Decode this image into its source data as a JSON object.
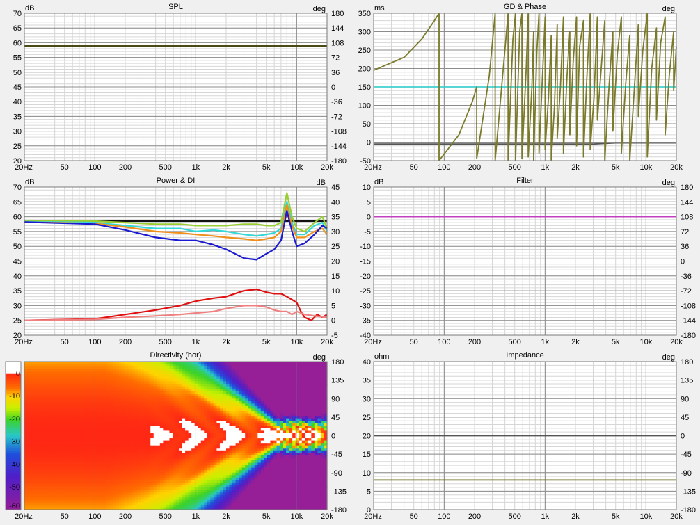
{
  "colors": {
    "background": "#f0f0f0",
    "plot_bg": "#ffffff",
    "major_grid": "#8c8c8c",
    "minor_grid": "#d6d6d6",
    "spl_trace": "#4a4a14",
    "gd_trace": "#7a7a2a",
    "phase_ref": "#40d0d0",
    "filter_trace": "#c040c0",
    "impedance_trace": "#6b6b1a",
    "power_black": "#111111",
    "power_green": "#9acd32",
    "power_cyan": "#32d8d8",
    "power_orange": "#f0901a",
    "power_blue": "#1a1ad0",
    "di_red": "#e01010",
    "di_pink": "#f08080"
  },
  "x_axis": {
    "tick_values": [
      20,
      50,
      100,
      200,
      500,
      1000,
      2000,
      5000,
      10000,
      20000
    ],
    "tick_labels": [
      "20Hz",
      "50",
      "100",
      "200",
      "500",
      "1k",
      "2k",
      "5k",
      "10k",
      "20k"
    ]
  },
  "chart_data": [
    {
      "id": "spl",
      "type": "line",
      "title": "SPL",
      "left_unit": "dB",
      "right_unit": "deg",
      "x_scale": "log",
      "xlim": [
        20,
        20000
      ],
      "ylim": [
        20,
        70
      ],
      "y_ticks": [
        "70",
        "65",
        "60",
        "55",
        "50",
        "45",
        "40",
        "35",
        "30",
        "25",
        "20"
      ],
      "y2_ticks": [
        "180",
        "144",
        "108",
        "72",
        "36",
        "0",
        "-36",
        "-72",
        "-108",
        "-144",
        "-180"
      ],
      "series": [
        {
          "color": "#4a4a14",
          "axis": "left",
          "x": [
            20,
            20000
          ],
          "y": [
            58.8,
            58.8
          ]
        }
      ]
    },
    {
      "id": "gd_phase",
      "type": "line",
      "title": "GD & Phase",
      "left_unit": "ms",
      "right_unit": "deg",
      "x_scale": "log",
      "xlim": [
        20,
        20000
      ],
      "ylim": [
        -50,
        350
      ],
      "y_ticks": [
        "350",
        "300",
        "250",
        "200",
        "150",
        "100",
        "50",
        "0",
        "-50"
      ],
      "y2_ticks": [],
      "series": [
        {
          "color": "#40d0d0",
          "axis": "left",
          "x": [
            20,
            20000
          ],
          "y": [
            150,
            150
          ]
        },
        {
          "color": "#555555",
          "axis": "left",
          "x": [
            20,
            3000,
            5000,
            20000
          ],
          "y": [
            -5,
            -5,
            -2,
            -2
          ]
        },
        {
          "color": "#7a7a2a",
          "axis": "left",
          "x": [
            20,
            40,
            60,
            80,
            89,
            89,
            140,
            190,
            210,
            210,
            280,
            320,
            320,
            400,
            430,
            430,
            480,
            510,
            510,
            560,
            590,
            590,
            650,
            680,
            680,
            740,
            770,
            770,
            830,
            870,
            870,
            950,
            1000,
            1000,
            1080,
            1150,
            1150,
            1240,
            1320,
            1320,
            1420,
            1520,
            1520,
            1650,
            1760,
            1760,
            1900,
            2050,
            2050,
            2200,
            2400,
            2400,
            2600,
            2800,
            2800,
            3050,
            3300,
            3300,
            3600,
            3900,
            3900,
            4300,
            4700,
            4700,
            5200,
            5700,
            5700,
            6300,
            6900,
            6900,
            7600,
            8400,
            8400,
            9300,
            10300,
            10300,
            11400,
            12700,
            12700,
            14000,
            15500,
            15500,
            17000,
            18800,
            18800,
            20000
          ],
          "y": [
            195,
            230,
            280,
            330,
            350,
            -50,
            20,
            110,
            150,
            -45,
            180,
            350,
            -50,
            250,
            350,
            -50,
            280,
            350,
            -50,
            300,
            350,
            -45,
            200,
            350,
            -40,
            150,
            300,
            -50,
            250,
            350,
            -30,
            200,
            340,
            -20,
            120,
            290,
            -50,
            100,
            320,
            10,
            150,
            340,
            -30,
            180,
            300,
            20,
            220,
            340,
            -10,
            260,
            330,
            -40,
            180,
            350,
            -20,
            120,
            340,
            60,
            200,
            330,
            -50,
            150,
            300,
            30,
            240,
            340,
            -30,
            160,
            290,
            -50,
            130,
            320,
            70,
            250,
            350,
            -40,
            200,
            310,
            60,
            270,
            340,
            20,
            180,
            300,
            140,
            260
          ]
        }
      ]
    },
    {
      "id": "power_di",
      "type": "line",
      "title": "Power & DI",
      "left_unit": "dB",
      "right_unit": "dB",
      "x_scale": "log",
      "xlim": [
        20,
        20000
      ],
      "ylim": [
        20,
        70
      ],
      "y_ticks": [
        "70",
        "65",
        "60",
        "55",
        "50",
        "45",
        "40",
        "35",
        "30",
        "25",
        "20"
      ],
      "y2_ticks": [
        "45",
        "40",
        "35",
        "30",
        "25",
        "20",
        "15",
        "10",
        "5",
        "0",
        "-5"
      ],
      "series": [
        {
          "color": "#111111",
          "axis": "left",
          "x": [
            20,
            20000
          ],
          "y": [
            58.5,
            58.5
          ]
        },
        {
          "color": "#9acd32",
          "axis": "left",
          "x": [
            20,
            100,
            200,
            400,
            700,
            1000,
            1500,
            2000,
            3000,
            4000,
            5000,
            6000,
            7000,
            8000,
            9000,
            10000,
            12000,
            15000,
            18000,
            20000
          ],
          "y": [
            58.5,
            58.5,
            58,
            57.5,
            57.5,
            57,
            57,
            57,
            57.5,
            57.5,
            57,
            57,
            58,
            68,
            60,
            56,
            55,
            58,
            60,
            56
          ]
        },
        {
          "color": "#32d8d8",
          "axis": "left",
          "x": [
            20,
            100,
            200,
            400,
            700,
            1000,
            1500,
            2000,
            3000,
            4000,
            5000,
            6000,
            7000,
            8000,
            9000,
            10000,
            12000,
            15000,
            18000,
            20000
          ],
          "y": [
            58.3,
            58,
            57,
            56,
            56,
            55,
            55.5,
            55,
            54,
            53.5,
            54,
            54.5,
            56,
            65,
            58,
            54,
            54,
            57,
            58,
            55
          ]
        },
        {
          "color": "#f0901a",
          "axis": "left",
          "x": [
            20,
            100,
            200,
            400,
            700,
            1000,
            1500,
            2000,
            3000,
            4000,
            5000,
            6000,
            7000,
            8000,
            9000,
            10000,
            12000,
            15000,
            18000,
            20000
          ],
          "y": [
            58.2,
            57.7,
            56.5,
            55,
            54.5,
            54,
            53.5,
            53,
            52.5,
            52,
            52.5,
            53,
            55,
            64,
            57,
            53,
            53,
            55,
            56,
            54
          ]
        },
        {
          "color": "#1a1ad0",
          "axis": "left",
          "x": [
            20,
            100,
            200,
            400,
            700,
            1000,
            1500,
            2000,
            3000,
            4000,
            5000,
            6000,
            7000,
            8000,
            9000,
            10000,
            12000,
            15000,
            18000,
            20000
          ],
          "y": [
            58.2,
            57.5,
            55.5,
            53,
            52,
            52,
            50.5,
            49,
            46,
            45.5,
            47.5,
            49,
            52,
            62,
            55,
            50,
            51,
            54,
            57,
            56
          ]
        },
        {
          "color": "#e01010",
          "axis": "right",
          "x": [
            20,
            100,
            200,
            400,
            700,
            1000,
            1500,
            2000,
            3000,
            4000,
            5000,
            6000,
            7000,
            8000,
            9000,
            10000,
            11000,
            12000,
            14000,
            16000,
            18000,
            20000
          ],
          "y": [
            0,
            0.5,
            2,
            3.5,
            5,
            6.5,
            7.5,
            8,
            10,
            10.5,
            9.5,
            9,
            9,
            8,
            7,
            6,
            3,
            1,
            0,
            2,
            1,
            2
          ]
        },
        {
          "color": "#f08080",
          "axis": "right",
          "x": [
            20,
            100,
            200,
            400,
            700,
            1000,
            1500,
            2000,
            3000,
            4000,
            5000,
            6000,
            7000,
            8000,
            9000,
            10000,
            12000,
            15000,
            20000
          ],
          "y": [
            0,
            0.3,
            1,
            1.5,
            2,
            2.5,
            3,
            4,
            5,
            5,
            4.5,
            3.5,
            3,
            3,
            2,
            3,
            2,
            1.5,
            1
          ]
        }
      ]
    },
    {
      "id": "filter",
      "type": "line",
      "title": "Filter",
      "left_unit": "dB",
      "right_unit": "deg",
      "x_scale": "log",
      "xlim": [
        20,
        20000
      ],
      "ylim": [
        -40,
        10
      ],
      "y_ticks": [
        "10",
        "5",
        "0",
        "-5",
        "-10",
        "-15",
        "-20",
        "-25",
        "-30",
        "-35",
        "-40"
      ],
      "y2_ticks": [
        "180",
        "144",
        "108",
        "72",
        "36",
        "0",
        "-36",
        "-72",
        "-108",
        "-144",
        "-180"
      ],
      "series": [
        {
          "color": "#c040c0",
          "axis": "left",
          "x": [
            20,
            20000
          ],
          "y": [
            0,
            0
          ]
        }
      ]
    },
    {
      "id": "directivity",
      "type": "heatmap",
      "title": "Directivity (hor)",
      "right_unit": "deg",
      "x_scale": "log",
      "xlim": [
        20,
        20000
      ],
      "ylim": [
        -180,
        180
      ],
      "y2_ticks": [
        "180",
        "135",
        "90",
        "45",
        "0",
        "-45",
        "-90",
        "-135",
        "-180"
      ],
      "colorbar_ticks": [
        "0",
        "-10",
        "-20",
        "-30",
        "-40",
        "-50",
        "-60"
      ],
      "contours_db": [
        -3,
        -6,
        -9,
        -12,
        -18,
        -24,
        -30,
        -40
      ]
    },
    {
      "id": "impedance",
      "type": "line",
      "title": "Impedance",
      "left_unit": "ohm",
      "right_unit": "deg",
      "x_scale": "log",
      "xlim": [
        20,
        20000
      ],
      "ylim": [
        0,
        40
      ],
      "y_ticks": [
        "40",
        "35",
        "30",
        "25",
        "20",
        "15",
        "10",
        "5",
        "0"
      ],
      "y2_ticks": [
        "180",
        "135",
        "90",
        "45",
        "0",
        "-45",
        "-90",
        "-135",
        "-180"
      ],
      "series": [
        {
          "color": "#6b6b1a",
          "axis": "left",
          "x": [
            20,
            20000
          ],
          "y": [
            8,
            8
          ]
        },
        {
          "color": "#555555",
          "axis": "right",
          "x": [
            20,
            20000
          ],
          "y": [
            0,
            0
          ]
        }
      ]
    }
  ]
}
